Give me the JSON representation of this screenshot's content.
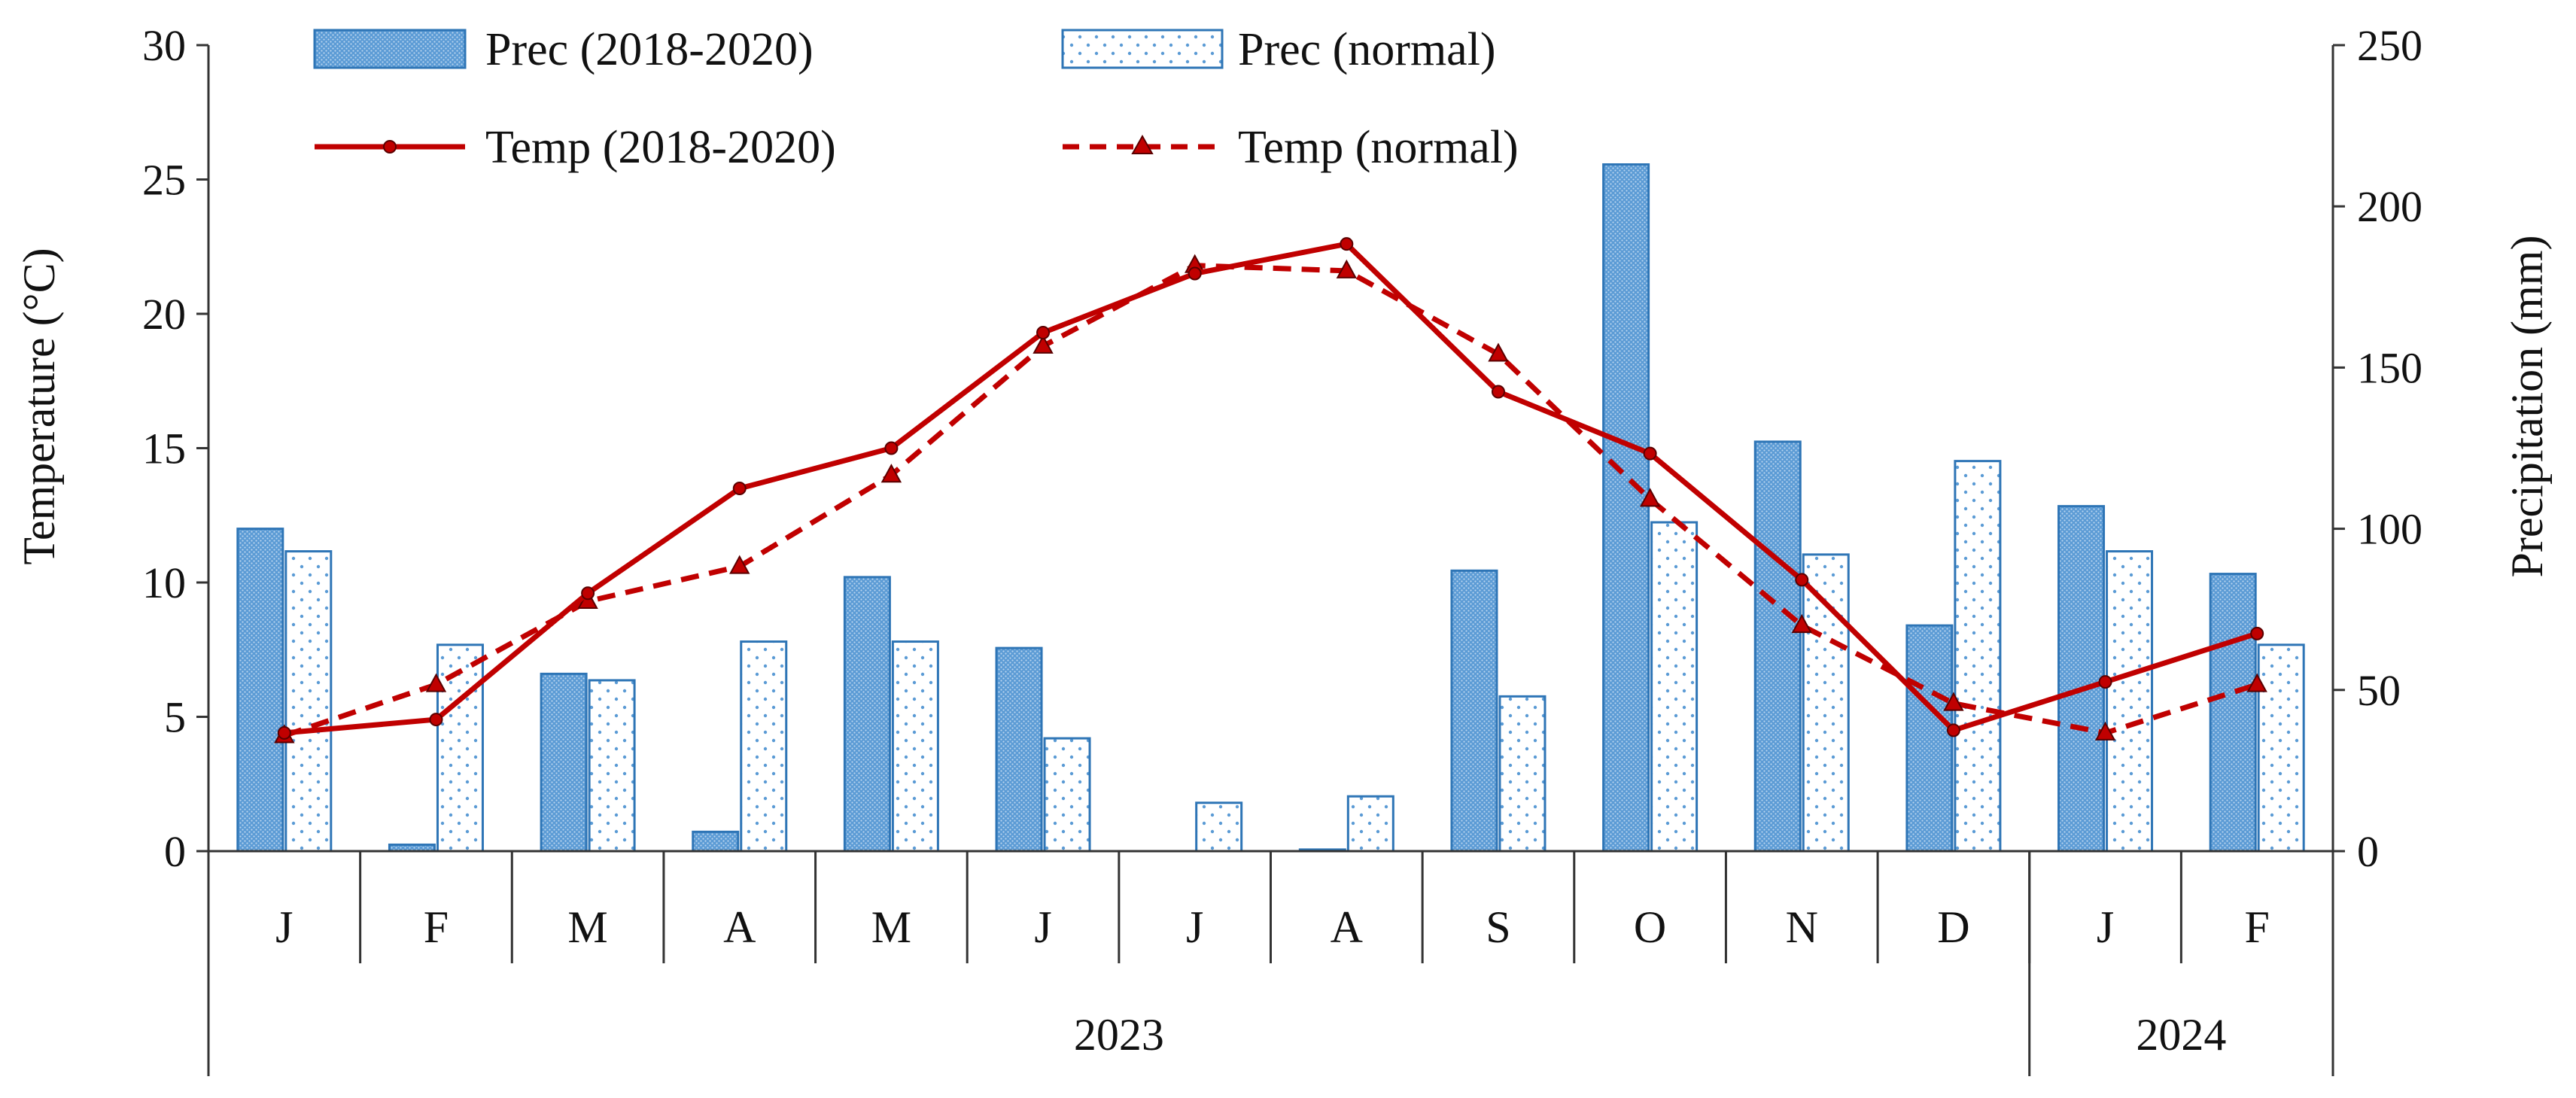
{
  "chart_data": {
    "type": "bar+line",
    "months": [
      "J",
      "F",
      "M",
      "A",
      "M",
      "J",
      "J",
      "A",
      "S",
      "O",
      "N",
      "D",
      "J",
      "F"
    ],
    "years": [
      {
        "label": "2023",
        "months": 12
      },
      {
        "label": "2024",
        "months": 2
      }
    ],
    "left_axis": {
      "title": "Temperature (°C)",
      "min": 0,
      "max": 30,
      "ticks": [
        "0",
        "5",
        "10",
        "15",
        "20",
        "25",
        "30"
      ]
    },
    "right_axis": {
      "title": "Precipitation (mm)",
      "min": 0,
      "max": 250,
      "ticks": [
        "0",
        "50",
        "100",
        "150",
        "200",
        "250"
      ]
    },
    "series": [
      {
        "name": "Prec (2018-2020)",
        "kind": "bar",
        "axis": "right",
        "color": "#5b9bd5",
        "values": [
          100,
          2,
          55,
          6,
          85,
          63,
          0,
          0.5,
          87,
          213,
          127,
          70,
          107,
          86
        ]
      },
      {
        "name": "Prec (normal)",
        "kind": "bar",
        "axis": "right",
        "color": "#9dc3e6",
        "values": [
          93,
          64,
          53,
          65,
          65,
          35,
          15,
          17,
          48,
          102,
          92,
          121,
          93,
          64
        ]
      },
      {
        "name": "Temp (2018-2020)",
        "kind": "line",
        "axis": "left",
        "color": "#c00000",
        "marker": "circle",
        "values": [
          4.4,
          4.9,
          9.6,
          13.5,
          15.0,
          19.3,
          21.5,
          22.6,
          17.1,
          14.8,
          10.1,
          4.5,
          6.3,
          8.1
        ]
      },
      {
        "name": "Temp (normal)",
        "kind": "line",
        "axis": "left",
        "color": "#c00000",
        "marker": "triangle",
        "dash": true,
        "values": [
          4.3,
          6.2,
          9.3,
          10.6,
          14.0,
          18.8,
          21.8,
          21.6,
          18.5,
          13.1,
          8.4,
          5.5,
          4.4,
          6.2
        ]
      }
    ],
    "legend_position": "top"
  }
}
